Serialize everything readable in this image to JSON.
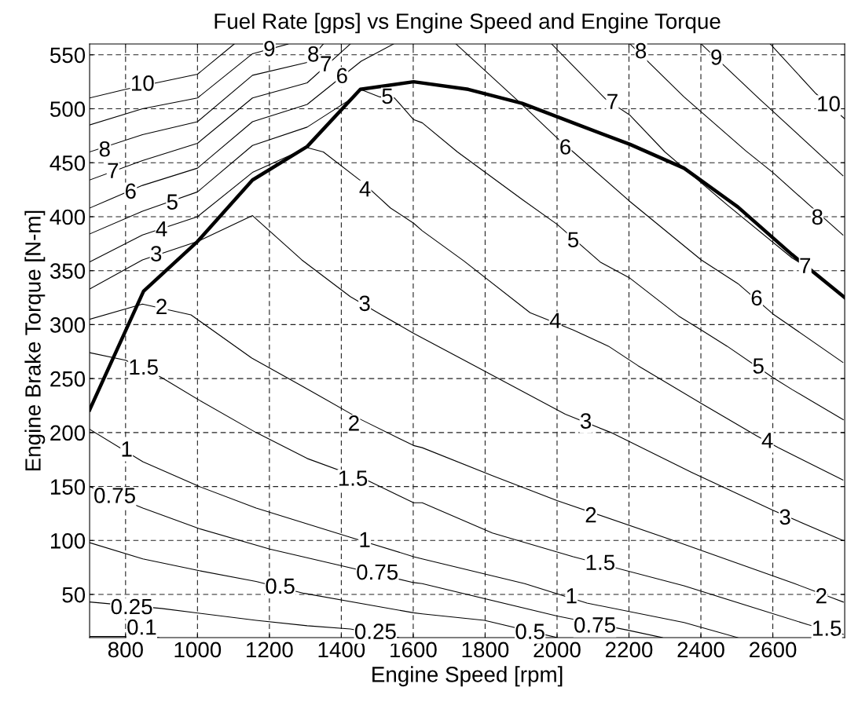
{
  "chart_data": {
    "type": "line",
    "title": "Fuel Rate [gps] vs Engine Speed and Engine Torque",
    "xlabel": "Engine Speed [rpm]",
    "ylabel": "Engine Brake Torque [N-m]",
    "xlim": [
      700,
      2800
    ],
    "ylim": [
      10,
      560
    ],
    "xticks": [
      800,
      1000,
      1200,
      1400,
      1600,
      1800,
      2000,
      2200,
      2400,
      2600
    ],
    "yticks": [
      50,
      100,
      150,
      200,
      250,
      300,
      350,
      400,
      450,
      500,
      550
    ],
    "grid": true,
    "line_style": "solid",
    "marker": "none",
    "series": [
      {
        "color": "#000000",
        "x": [
          700,
          850,
          1000,
          1153,
          1305,
          1453,
          1601,
          1753,
          1903,
          2060,
          2203,
          2353,
          2503,
          2653,
          2800
        ],
        "values": [
          221,
          331,
          377,
          434,
          465,
          518,
          525,
          518,
          505,
          485,
          467,
          445,
          409,
          365,
          325
        ]
      },
      {
        "color": "#000000",
        "x": [
          700,
          800,
          1000,
          1102
        ],
        "values": [
          510,
          518,
          532,
          560
        ]
      },
      {
        "color": "#000000",
        "x": [
          700,
          847,
          1000,
          1153,
          1252
        ],
        "values": [
          485,
          500,
          510,
          551,
          560
        ]
      },
      {
        "color": "#000000",
        "x": [
          700,
          847,
          1000,
          1153,
          1305,
          1350
        ],
        "values": [
          460,
          476,
          488,
          531,
          543,
          560
        ]
      },
      {
        "color": "#000000",
        "x": [
          700,
          847,
          1000,
          1153,
          1305,
          1425
        ],
        "values": [
          434,
          452,
          468,
          510,
          524,
          560
        ]
      },
      {
        "color": "#000000",
        "x": [
          700,
          847,
          1000,
          1153,
          1305,
          1455,
          1545
        ],
        "values": [
          408,
          429,
          445,
          488,
          504,
          544,
          560
        ]
      },
      {
        "color": "#000000",
        "x": [
          700,
          847,
          1000,
          1153,
          1305,
          1417,
          1453,
          1507,
          1548,
          1601,
          1625,
          1723,
          1903,
          2000,
          2120,
          2203,
          2338,
          2401,
          2473,
          2600,
          2653,
          2796
        ],
        "values": [
          384,
          405,
          423,
          466,
          483,
          507,
          518,
          511,
          510,
          490,
          487,
          460,
          416,
          393,
          358,
          343,
          308,
          295,
          280,
          251,
          240,
          212
        ]
      },
      {
        "color": "#000000",
        "x": [
          700,
          847,
          1000,
          1153,
          1305,
          1350,
          1455,
          1537,
          1601,
          1625,
          1741,
          1925,
          2045,
          2143,
          2225,
          2401,
          2555,
          2615,
          2795
        ],
        "values": [
          358,
          383,
          400,
          441,
          464,
          460,
          433,
          408,
          394,
          387,
          359,
          311,
          295,
          280,
          262,
          227,
          197,
          186,
          156
        ]
      },
      {
        "color": "#000000",
        "x": [
          700,
          847,
          1000,
          1153,
          1290,
          1425,
          1507,
          1601,
          1753,
          2023,
          2150,
          2375,
          2600,
          2795
        ],
        "values": [
          333,
          360,
          377,
          401,
          360,
          326,
          310,
          292,
          265,
          217,
          200,
          163,
          128,
          100
        ]
      },
      {
        "color": "#000000",
        "x": [
          700,
          847,
          982,
          1151,
          1297,
          1455,
          1601,
          1625,
          1820,
          2000,
          2323,
          2661,
          2796
        ],
        "values": [
          305,
          319,
          309,
          269,
          242,
          212,
          188,
          186,
          160,
          137,
          100,
          60,
          43
        ]
      },
      {
        "color": "#000000",
        "x": [
          700,
          800,
          900,
          1005,
          1163,
          1305,
          1477,
          1601,
          1625,
          1820,
          2045,
          2353,
          2698,
          2796
        ],
        "values": [
          274,
          267,
          251,
          230,
          200,
          176,
          155,
          135,
          135,
          107,
          85,
          58,
          22,
          13
        ]
      },
      {
        "color": "#000000",
        "x": [
          700,
          848,
          1005,
          1163,
          1425,
          1601,
          1625,
          1910,
          2083,
          2353,
          2503
        ],
        "values": [
          203,
          173,
          150,
          130,
          103,
          85,
          83,
          60,
          42,
          24,
          10
        ]
      },
      {
        "color": "#000000",
        "x": [
          700,
          848,
          1005,
          1201,
          1396,
          1601,
          1625,
          2000,
          2195,
          2293
        ],
        "values": [
          150,
          130,
          111,
          92,
          77,
          61,
          60,
          30,
          17,
          10
        ]
      },
      {
        "color": "#000000",
        "x": [
          700,
          848,
          1005,
          1163,
          1297,
          1601,
          1625,
          1798,
          2000
        ],
        "values": [
          98,
          83,
          72,
          62,
          51,
          33,
          32,
          26,
          10
        ]
      },
      {
        "color": "#000000",
        "x": [
          700,
          900,
          1163,
          1305,
          1425,
          1560
        ],
        "values": [
          43,
          37,
          26,
          21,
          18,
          10
        ]
      },
      {
        "color": "#000000",
        "x": [
          700,
          796,
          893
        ],
        "values": [
          11,
          11,
          10
        ]
      },
      {
        "color": "#000000",
        "x": [
          1719,
          1899,
          2000,
          2045,
          2203,
          2225,
          2401,
          2503,
          2600,
          2795
        ],
        "values": [
          560,
          505,
          473,
          460,
          414,
          408,
          360,
          338,
          310,
          265
        ]
      },
      {
        "color": "#000000",
        "x": [
          1985,
          2135,
          2203,
          2300,
          2353,
          2473,
          2653,
          2720,
          2800
        ],
        "values": [
          560,
          509,
          494,
          460,
          445,
          411,
          362,
          348,
          325
        ]
      },
      {
        "color": "#000000",
        "x": [
          2203,
          2353,
          2525,
          2600,
          2795
        ],
        "values": [
          560,
          511,
          461,
          441,
          383
        ]
      },
      {
        "color": "#000000",
        "x": [
          2401,
          2563,
          2795
        ],
        "values": [
          560,
          509,
          438
        ]
      },
      {
        "color": "#000000",
        "x": [
          2593,
          2720,
          2799
        ],
        "values": [
          560,
          514,
          491
        ]
      }
    ],
    "annotations": [
      {
        "text": "10",
        "x": 847,
        "y": 522
      },
      {
        "text": "9",
        "x": 1200,
        "y": 554
      },
      {
        "text": "8",
        "x": 742,
        "y": 461
      },
      {
        "text": "8",
        "x": 1322,
        "y": 549
      },
      {
        "text": "7",
        "x": 765,
        "y": 441
      },
      {
        "text": "7",
        "x": 1357,
        "y": 540
      },
      {
        "text": "6",
        "x": 814,
        "y": 422
      },
      {
        "text": "6",
        "x": 1402,
        "y": 529
      },
      {
        "text": "5",
        "x": 930,
        "y": 412
      },
      {
        "text": "5",
        "x": 1528,
        "y": 510
      },
      {
        "text": "5",
        "x": 2045,
        "y": 377
      },
      {
        "text": "5",
        "x": 2560,
        "y": 260
      },
      {
        "text": "4",
        "x": 900,
        "y": 387
      },
      {
        "text": "4",
        "x": 1466,
        "y": 424
      },
      {
        "text": "4",
        "x": 1995,
        "y": 302
      },
      {
        "text": "4",
        "x": 2585,
        "y": 191
      },
      {
        "text": "3",
        "x": 885,
        "y": 364
      },
      {
        "text": "3",
        "x": 1465,
        "y": 318
      },
      {
        "text": "3",
        "x": 2080,
        "y": 209
      },
      {
        "text": "3",
        "x": 2634,
        "y": 120
      },
      {
        "text": "2",
        "x": 900,
        "y": 315
      },
      {
        "text": "2",
        "x": 1435,
        "y": 207
      },
      {
        "text": "2",
        "x": 2094,
        "y": 122
      },
      {
        "text": "2",
        "x": 2735,
        "y": 47
      },
      {
        "text": "1.5",
        "x": 850,
        "y": 259
      },
      {
        "text": "1.5",
        "x": 1432,
        "y": 156
      },
      {
        "text": "1.5",
        "x": 2120,
        "y": 78
      },
      {
        "text": "1.5",
        "x": 2750,
        "y": 17
      },
      {
        "text": "1",
        "x": 803,
        "y": 183
      },
      {
        "text": "1",
        "x": 1465,
        "y": 99
      },
      {
        "text": "1",
        "x": 2040,
        "y": 47
      },
      {
        "text": "0.75",
        "x": 770,
        "y": 140
      },
      {
        "text": "0.75",
        "x": 1500,
        "y": 69
      },
      {
        "text": "0.75",
        "x": 2105,
        "y": 20
      },
      {
        "text": "0.5",
        "x": 1230,
        "y": 56
      },
      {
        "text": "0.5",
        "x": 1925,
        "y": 14
      },
      {
        "text": "0.25",
        "x": 817,
        "y": 37
      },
      {
        "text": "0.25",
        "x": 1495,
        "y": 14
      },
      {
        "text": "0.1",
        "x": 845,
        "y": 18
      },
      {
        "text": "6",
        "x": 2023,
        "y": 463
      },
      {
        "text": "6",
        "x": 2555,
        "y": 323
      },
      {
        "text": "7",
        "x": 2154,
        "y": 505
      },
      {
        "text": "7",
        "x": 2690,
        "y": 353
      },
      {
        "text": "8",
        "x": 2233,
        "y": 552
      },
      {
        "text": "8",
        "x": 2724,
        "y": 398
      },
      {
        "text": "9",
        "x": 2443,
        "y": 546
      },
      {
        "text": "10",
        "x": 2755,
        "y": 503
      }
    ]
  }
}
